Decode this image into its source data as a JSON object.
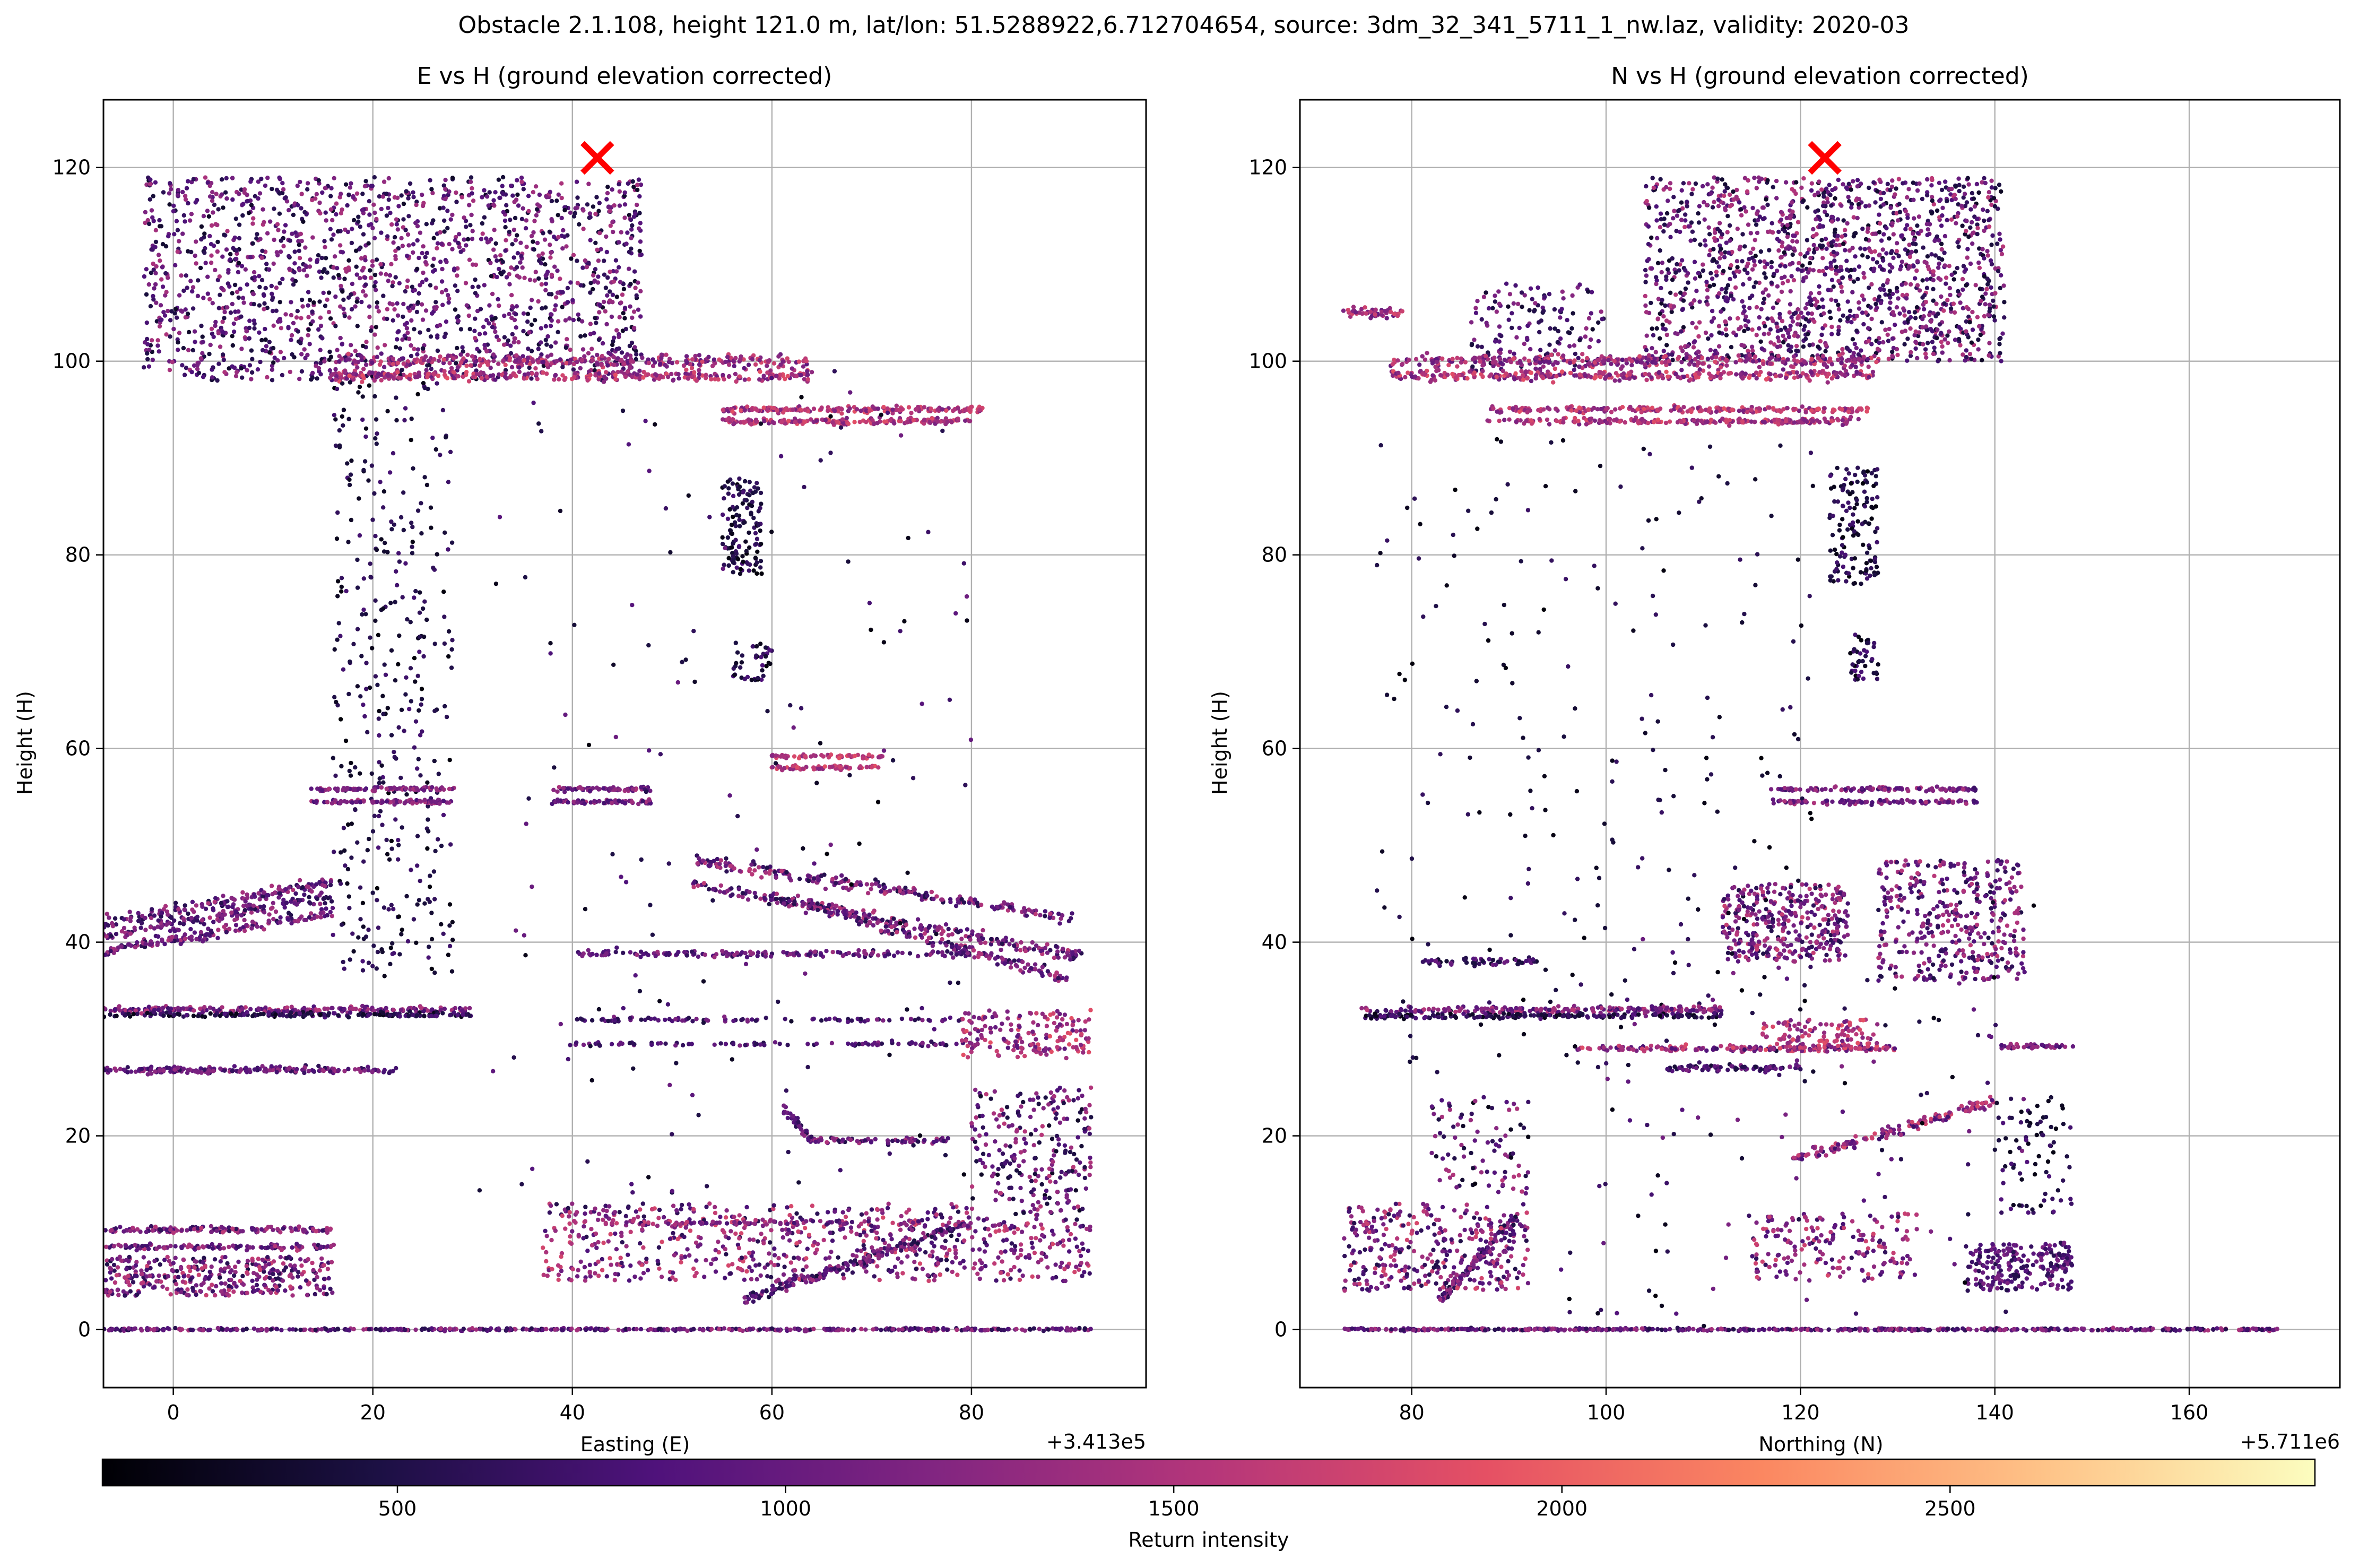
{
  "figure": {
    "suptitle": "Obstacle 2.1.108, height 121.0 m, lat/lon: 51.5288922,6.712704654, source: 3dm_32_341_5711_1_nw.laz, validity: 2020-03"
  },
  "colormap": {
    "name": "magma",
    "stops": [
      "#000004",
      "#1c1044",
      "#4f127b",
      "#812581",
      "#b5367a",
      "#e55064",
      "#fb8761",
      "#fec287",
      "#fcfdbf"
    ],
    "label": "Return intensity",
    "ticks": [
      "500",
      "1000",
      "1500",
      "2000",
      "2500"
    ],
    "tick_values": [
      500,
      1000,
      1500,
      2000,
      2500
    ],
    "range": [
      120,
      2970
    ]
  },
  "marker": {
    "color": "#ff0000",
    "symbol": "x"
  },
  "chart_data": [
    {
      "type": "scatter",
      "title": "E vs H (ground elevation corrected)",
      "xlabel": "Easting (E)",
      "ylabel": "Height (H)",
      "offset_label": "+3.413e5",
      "xlim": [
        -7,
        97.5
      ],
      "ylim": [
        -6,
        127
      ],
      "xticks": [
        0,
        20,
        40,
        60,
        80
      ],
      "xtick_labels": [
        "0",
        "20",
        "40",
        "60",
        "80"
      ],
      "yticks": [
        0,
        20,
        40,
        60,
        80,
        100,
        120
      ],
      "ytick_labels": [
        "0",
        "20",
        "40",
        "60",
        "80",
        "100",
        "120"
      ],
      "grid": true,
      "obstacle_point": {
        "x": 42.5,
        "y": 121.0
      },
      "point_clusters": [
        {
          "type": "cloud",
          "x": [
            -3,
            47
          ],
          "y": [
            98,
            119
          ],
          "n": 1700,
          "c": [
            300,
            1500
          ]
        },
        {
          "type": "line",
          "x0": 16,
          "y0": 100,
          "x1": 64,
          "y1": 100,
          "n": 320,
          "jx": 0.3,
          "jy": 0.6,
          "c": [
            900,
            1800
          ]
        },
        {
          "type": "line",
          "x0": 16,
          "y0": 98.5,
          "x1": 64,
          "y1": 98.5,
          "n": 320,
          "jx": 0.3,
          "jy": 0.5,
          "c": [
            1000,
            1900
          ]
        },
        {
          "type": "line",
          "x0": 55,
          "y0": 95,
          "x1": 81,
          "y1": 95,
          "n": 180,
          "jx": 0.3,
          "jy": 0.3,
          "c": [
            1100,
            1900
          ]
        },
        {
          "type": "line",
          "x0": 55,
          "y0": 93.8,
          "x1": 80,
          "y1": 93.8,
          "n": 180,
          "jx": 0.3,
          "jy": 0.3,
          "c": [
            1100,
            1900
          ]
        },
        {
          "type": "cloud",
          "x": [
            16,
            28
          ],
          "y": [
            36,
            98
          ],
          "n": 380,
          "c": [
            150,
            800
          ]
        },
        {
          "type": "cloud",
          "x": [
            55,
            59
          ],
          "y": [
            78,
            88
          ],
          "n": 130,
          "c": [
            150,
            800
          ]
        },
        {
          "type": "cloud",
          "x": [
            56,
            60
          ],
          "y": [
            67,
            71
          ],
          "n": 40,
          "c": [
            150,
            900
          ]
        },
        {
          "type": "line",
          "x0": 14,
          "y0": 55.8,
          "x1": 28,
          "y1": 55.8,
          "n": 90,
          "jx": 0.3,
          "jy": 0.2,
          "c": [
            800,
            1500
          ]
        },
        {
          "type": "line",
          "x0": 14,
          "y0": 54.5,
          "x1": 28,
          "y1": 54.5,
          "n": 90,
          "jx": 0.3,
          "jy": 0.2,
          "c": [
            800,
            1500
          ]
        },
        {
          "type": "line",
          "x0": 38,
          "y0": 55.8,
          "x1": 48,
          "y1": 55.8,
          "n": 70,
          "jx": 0.2,
          "jy": 0.2,
          "c": [
            700,
            1500
          ]
        },
        {
          "type": "line",
          "x0": 38,
          "y0": 54.5,
          "x1": 48,
          "y1": 54.5,
          "n": 70,
          "jx": 0.2,
          "jy": 0.2,
          "c": [
            700,
            1500
          ]
        },
        {
          "type": "line",
          "x0": 60,
          "y0": 59.2,
          "x1": 71,
          "y1": 59.2,
          "n": 60,
          "jx": 0.2,
          "jy": 0.2,
          "c": [
            1200,
            1900
          ]
        },
        {
          "type": "line",
          "x0": 60,
          "y0": 58,
          "x1": 71,
          "y1": 58,
          "n": 60,
          "jx": 0.2,
          "jy": 0.2,
          "c": [
            1200,
            1900
          ]
        },
        {
          "type": "line",
          "x0": -7,
          "y0": 42,
          "x1": 16,
          "y1": 46.2,
          "n": 150,
          "jx": 0.3,
          "jy": 0.6,
          "c": [
            500,
            1500
          ]
        },
        {
          "type": "line",
          "x0": -7,
          "y0": 40.6,
          "x1": 16,
          "y1": 44.8,
          "n": 150,
          "jx": 0.3,
          "jy": 0.6,
          "c": [
            500,
            1500
          ]
        },
        {
          "type": "line",
          "x0": -7,
          "y0": 39,
          "x1": 16,
          "y1": 43.2,
          "n": 150,
          "jx": 0.3,
          "jy": 0.6,
          "c": [
            500,
            1500
          ]
        },
        {
          "type": "line",
          "x0": 52,
          "y0": 48.5,
          "x1": 90,
          "y1": 42.5,
          "n": 230,
          "jx": 0.4,
          "jy": 0.6,
          "c": [
            500,
            1600
          ]
        },
        {
          "type": "line",
          "x0": 52,
          "y0": 46,
          "x1": 91,
          "y1": 38.5,
          "n": 230,
          "jx": 0.4,
          "jy": 0.6,
          "c": [
            500,
            1600
          ]
        },
        {
          "type": "line",
          "x0": 60,
          "y0": 45,
          "x1": 90,
          "y1": 36,
          "n": 200,
          "jx": 0.4,
          "jy": 0.6,
          "c": [
            500,
            1600
          ]
        },
        {
          "type": "line",
          "x0": 40,
          "y0": 38.8,
          "x1": 80,
          "y1": 38.8,
          "n": 160,
          "jx": 0.4,
          "jy": 0.3,
          "c": [
            600,
            1400
          ]
        },
        {
          "type": "line",
          "x0": -7,
          "y0": 33,
          "x1": 30,
          "y1": 33,
          "n": 240,
          "jx": 0.3,
          "jy": 0.3,
          "c": [
            700,
            1600
          ]
        },
        {
          "type": "line",
          "x0": -7,
          "y0": 32.5,
          "x1": 30,
          "y1": 32.5,
          "n": 180,
          "jx": 0.3,
          "jy": 0.25,
          "c": [
            200,
            900
          ]
        },
        {
          "type": "line",
          "x0": -7,
          "y0": 26.8,
          "x1": 22,
          "y1": 26.8,
          "n": 200,
          "jx": 0.3,
          "jy": 0.3,
          "c": [
            600,
            1400
          ]
        },
        {
          "type": "line",
          "x0": 40,
          "y0": 32,
          "x1": 80,
          "y1": 32,
          "n": 90,
          "jx": 0.4,
          "jy": 0.2,
          "c": [
            500,
            1200
          ]
        },
        {
          "type": "line",
          "x0": 40,
          "y0": 29.5,
          "x1": 80,
          "y1": 29.5,
          "n": 90,
          "jx": 0.4,
          "jy": 0.2,
          "c": [
            500,
            1200
          ]
        },
        {
          "type": "cloud",
          "x": [
            79,
            92
          ],
          "y": [
            28,
            33
          ],
          "n": 170,
          "c": [
            900,
            1900
          ]
        },
        {
          "type": "line",
          "x0": 61,
          "y0": 23,
          "x1": 64,
          "y1": 19.5,
          "n": 40,
          "jx": 0.3,
          "jy": 0.3,
          "c": [
            500,
            1300
          ]
        },
        {
          "type": "line",
          "x0": 64,
          "y0": 19.5,
          "x1": 78,
          "y1": 19.5,
          "n": 70,
          "jx": 0.3,
          "jy": 0.3,
          "c": [
            500,
            1500
          ]
        },
        {
          "type": "cloud",
          "x": [
            80,
            92
          ],
          "y": [
            11,
            25
          ],
          "n": 260,
          "c": [
            300,
            1600
          ]
        },
        {
          "type": "line",
          "x0": -7,
          "y0": 10.3,
          "x1": 16,
          "y1": 10.3,
          "n": 140,
          "jx": 0.3,
          "jy": 0.3,
          "c": [
            600,
            1600
          ]
        },
        {
          "type": "line",
          "x0": -7,
          "y0": 8.5,
          "x1": 16,
          "y1": 8.5,
          "n": 110,
          "jx": 0.3,
          "jy": 0.3,
          "c": [
            600,
            1600
          ]
        },
        {
          "type": "cloud",
          "x": [
            -7,
            16
          ],
          "y": [
            3.5,
            7.5
          ],
          "n": 360,
          "c": [
            500,
            1700
          ]
        },
        {
          "type": "cloud",
          "x": [
            37,
            80
          ],
          "y": [
            5,
            13
          ],
          "n": 560,
          "c": [
            500,
            1800
          ]
        },
        {
          "type": "line",
          "x0": 57,
          "y0": 3,
          "x1": 80,
          "y1": 11,
          "n": 200,
          "jx": 0.3,
          "jy": 0.5,
          "c": [
            400,
            1400
          ]
        },
        {
          "type": "line",
          "x0": 40,
          "y0": 11,
          "x1": 80,
          "y1": 11,
          "n": 120,
          "jx": 0.4,
          "jy": 0.3,
          "c": [
            700,
            1800
          ]
        },
        {
          "type": "cloud",
          "x": [
            80,
            92
          ],
          "y": [
            5,
            11
          ],
          "n": 140,
          "c": [
            600,
            1800
          ]
        },
        {
          "type": "line",
          "x0": -7,
          "y0": 0,
          "x1": 92,
          "y1": 0,
          "n": 520,
          "jx": 0.2,
          "jy": 0.12,
          "c": [
            500,
            1500
          ]
        },
        {
          "type": "cloud",
          "x": [
            30,
            80
          ],
          "y": [
            14,
            100
          ],
          "n": 170,
          "c": [
            150,
            1100
          ]
        }
      ]
    },
    {
      "type": "scatter",
      "title": "N vs H (ground elevation corrected)",
      "xlabel": "Northing (N)",
      "ylabel": "Height (H)",
      "offset_label": "+5.711e6",
      "xlim": [
        68.5,
        175.5
      ],
      "ylim": [
        -6,
        127
      ],
      "xticks": [
        80,
        100,
        120,
        140,
        160
      ],
      "xtick_labels": [
        "80",
        "100",
        "120",
        "140",
        "160"
      ],
      "yticks": [
        0,
        20,
        40,
        60,
        80,
        100,
        120
      ],
      "ytick_labels": [
        "0",
        "20",
        "40",
        "60",
        "80",
        "100",
        "120"
      ],
      "grid": true,
      "obstacle_point": {
        "x": 122.5,
        "y": 121.0
      },
      "point_clusters": [
        {
          "type": "cloud",
          "x": [
            104,
            141
          ],
          "y": [
            100,
            119
          ],
          "n": 1500,
          "c": [
            300,
            1600
          ]
        },
        {
          "type": "line",
          "x0": 73,
          "y0": 105,
          "x1": 79,
          "y1": 105,
          "n": 50,
          "jx": 0.3,
          "jy": 0.6,
          "c": [
            900,
            1800
          ]
        },
        {
          "type": "cloud",
          "x": [
            86,
            100
          ],
          "y": [
            99,
            108
          ],
          "n": 150,
          "c": [
            300,
            1300
          ]
        },
        {
          "type": "line",
          "x0": 78,
          "y0": 100,
          "x1": 128,
          "y1": 100,
          "n": 330,
          "jx": 0.3,
          "jy": 0.6,
          "c": [
            900,
            1800
          ]
        },
        {
          "type": "line",
          "x0": 78,
          "y0": 98.5,
          "x1": 128,
          "y1": 98.5,
          "n": 330,
          "jx": 0.3,
          "jy": 0.5,
          "c": [
            1000,
            1900
          ]
        },
        {
          "type": "line",
          "x0": 88,
          "y0": 95,
          "x1": 127,
          "y1": 95,
          "n": 220,
          "jx": 0.3,
          "jy": 0.3,
          "c": [
            1100,
            1900
          ]
        },
        {
          "type": "line",
          "x0": 88,
          "y0": 93.8,
          "x1": 126,
          "y1": 93.8,
          "n": 220,
          "jx": 0.3,
          "jy": 0.3,
          "c": [
            1100,
            1900
          ]
        },
        {
          "type": "cloud",
          "x": [
            76,
            122
          ],
          "y": [
            26,
            92
          ],
          "n": 220,
          "c": [
            150,
            700
          ]
        },
        {
          "type": "cloud",
          "x": [
            123,
            128
          ],
          "y": [
            77,
            89
          ],
          "n": 140,
          "c": [
            150,
            800
          ]
        },
        {
          "type": "cloud",
          "x": [
            125,
            128
          ],
          "y": [
            67,
            72
          ],
          "n": 40,
          "c": [
            150,
            900
          ]
        },
        {
          "type": "line",
          "x0": 117,
          "y0": 55.8,
          "x1": 138,
          "y1": 55.8,
          "n": 110,
          "jx": 0.3,
          "jy": 0.2,
          "c": [
            700,
            1500
          ]
        },
        {
          "type": "line",
          "x0": 117,
          "y0": 54.5,
          "x1": 138,
          "y1": 54.5,
          "n": 110,
          "jx": 0.3,
          "jy": 0.2,
          "c": [
            700,
            1500
          ]
        },
        {
          "type": "cloud",
          "x": [
            112,
            125
          ],
          "y": [
            38,
            46
          ],
          "n": 360,
          "c": [
            500,
            1700
          ]
        },
        {
          "type": "cloud",
          "x": [
            128,
            143
          ],
          "y": [
            36,
            48.5
          ],
          "n": 400,
          "c": [
            500,
            1600
          ]
        },
        {
          "type": "line",
          "x0": 81,
          "y0": 38,
          "x1": 93,
          "y1": 38,
          "n": 60,
          "jx": 0.3,
          "jy": 0.4,
          "c": [
            300,
            1100
          ]
        },
        {
          "type": "line",
          "x0": 75,
          "y0": 33,
          "x1": 112,
          "y1": 33,
          "n": 220,
          "jx": 0.3,
          "jy": 0.3,
          "c": [
            700,
            1600
          ]
        },
        {
          "type": "line",
          "x0": 75,
          "y0": 32.4,
          "x1": 112,
          "y1": 32.4,
          "n": 180,
          "jx": 0.3,
          "jy": 0.25,
          "c": [
            200,
            900
          ]
        },
        {
          "type": "line",
          "x0": 97,
          "y0": 29,
          "x1": 130,
          "y1": 29,
          "n": 190,
          "jx": 0.3,
          "jy": 0.3,
          "c": [
            700,
            1900
          ]
        },
        {
          "type": "cloud",
          "x": [
            116,
            128
          ],
          "y": [
            29,
            32
          ],
          "n": 120,
          "c": [
            1000,
            1900
          ]
        },
        {
          "type": "line",
          "x0": 106,
          "y0": 27,
          "x1": 120,
          "y1": 27,
          "n": 80,
          "jx": 0.3,
          "jy": 0.3,
          "c": [
            400,
            1200
          ]
        },
        {
          "type": "line",
          "x0": 140,
          "y0": 29.2,
          "x1": 148,
          "y1": 29.2,
          "n": 40,
          "jx": 0.3,
          "jy": 0.3,
          "c": [
            700,
            1500
          ]
        },
        {
          "type": "line",
          "x0": 119,
          "y0": 17.5,
          "x1": 140,
          "y1": 23.5,
          "n": 160,
          "jx": 0.3,
          "jy": 0.5,
          "c": [
            700,
            1800
          ]
        },
        {
          "type": "line",
          "x0": 83,
          "y0": 3,
          "x1": 91,
          "y1": 12,
          "n": 110,
          "jx": 0.3,
          "jy": 0.4,
          "c": [
            400,
            1500
          ]
        },
        {
          "type": "cloud",
          "x": [
            82,
            92
          ],
          "y": [
            14,
            24
          ],
          "n": 90,
          "c": [
            200,
            1600
          ]
        },
        {
          "type": "cloud",
          "x": [
            73,
            92
          ],
          "y": [
            4,
            13
          ],
          "n": 350,
          "c": [
            500,
            1800
          ]
        },
        {
          "type": "cloud",
          "x": [
            115,
            132
          ],
          "y": [
            5,
            12
          ],
          "n": 180,
          "c": [
            600,
            1800
          ]
        },
        {
          "type": "cloud",
          "x": [
            137,
            148
          ],
          "y": [
            4,
            9
          ],
          "n": 220,
          "c": [
            500,
            1200
          ]
        },
        {
          "type": "cloud",
          "x": [
            140,
            148
          ],
          "y": [
            12,
            24
          ],
          "n": 80,
          "c": [
            200,
            900
          ]
        },
        {
          "type": "line",
          "x0": 73,
          "y0": 0,
          "x1": 169,
          "y1": 0,
          "n": 520,
          "jx": 0.2,
          "jy": 0.12,
          "c": [
            500,
            1500
          ]
        },
        {
          "type": "cloud",
          "x": [
            95,
            145
          ],
          "y": [
            0,
            45
          ],
          "n": 130,
          "c": [
            150,
            1200
          ]
        }
      ]
    }
  ]
}
